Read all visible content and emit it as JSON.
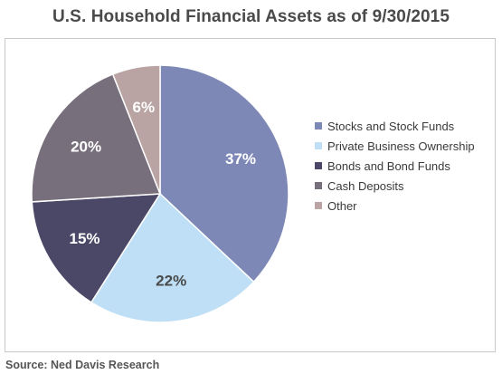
{
  "chart_data": {
    "type": "pie",
    "title": "U.S. Household Financial Assets as of 9/30/2015",
    "slices": [
      {
        "label": "Stocks and Stock Funds",
        "value": 37,
        "value_label": "37%",
        "color": "#7e88b6",
        "label_color": "#ffffff"
      },
      {
        "label": "Private Business Ownership",
        "value": 22,
        "value_label": "22%",
        "color": "#bedff5",
        "label_color": "#4a4a4a"
      },
      {
        "label": "Bonds and Bond Funds",
        "value": 15,
        "value_label": "15%",
        "color": "#4b4867",
        "label_color": "#ffffff"
      },
      {
        "label": "Cash Deposits",
        "value": 20,
        "value_label": "20%",
        "color": "#776f7c",
        "label_color": "#ffffff"
      },
      {
        "label": "Other",
        "value": 6,
        "value_label": "6%",
        "color": "#b9a4a3",
        "label_color": "#ffffff"
      }
    ],
    "start_angle": "12 o'clock",
    "direction": "clockwise",
    "legend_position": "right"
  },
  "source": "Source: Ned Davis Research"
}
